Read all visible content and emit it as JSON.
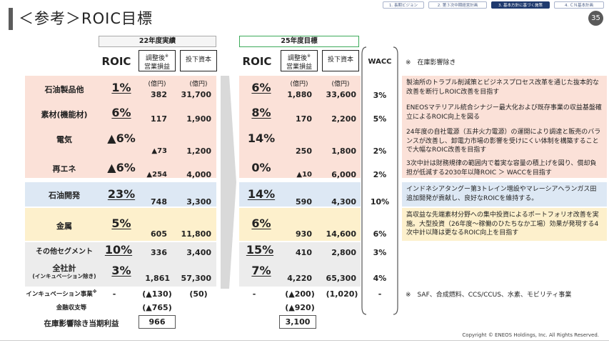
{
  "title": "＜参考＞ROIC目標",
  "page_number": "35",
  "tabs": [
    "1. 長期ビジョン",
    "2. 第３次中期経営計画",
    "3. 基本方針に基づく施策",
    "4. ＣＮ基本計画"
  ],
  "headers": {
    "actual": "22年度実績",
    "target": "25年度目標"
  },
  "col": {
    "roic": "ROIC",
    "adjusted_line1": "調整後",
    "adjusted_line2": "営業損益",
    "asterisk": "※",
    "capital": "投下資本",
    "wacc": "WACC",
    "note_top": "※　在庫影響除き",
    "unit": "(億円)"
  },
  "rows": [
    {
      "label": "石油製品他",
      "roic22": "1%",
      "op22": "382",
      "cap22": "31,700",
      "roic25": "6%",
      "op25": "1,880",
      "cap25": "33,600",
      "wacc": "3%",
      "comment": "製油所のトラブル削減策とビジネスプロセス改革を通じた抜本的な改善を断行しROIC改善を目指す"
    },
    {
      "label": "素材(機能材)",
      "roic22": "6%",
      "op22": "117",
      "cap22": "1,900",
      "roic25": "8%",
      "op25": "170",
      "cap25": "2,200",
      "wacc": "5%",
      "comment": "ENEOSマテリアル統合シナジー最大化および既存事業の収益基盤確立によるROIC向上を図る"
    },
    {
      "label": "電気",
      "roic22": "▲6%",
      "op22": "▲73",
      "cap22": "1,200",
      "roic25": "14%",
      "op25": "250",
      "cap25": "1,800",
      "wacc": "2%",
      "comment": "24年度の自社電源（五井火力電源）の運開により調達と販売のバランスが改善し、卸電力市場の影響を受けにくい体制を構築することで大幅なROIC改善を目指す"
    },
    {
      "label": "再エネ",
      "roic22": "▲6%",
      "op22": "▲254",
      "cap22": "4,000",
      "roic25": "0%",
      "op25": "▲10",
      "cap25": "6,000",
      "wacc": "2%",
      "comment": "3次中計は財務規律の範囲内で着実な容量の積上げを図り、償却負担が低減する2030年以降ROIC ＞ WACCを目指す"
    },
    {
      "label": "石油開発",
      "roic22": "23%",
      "op22": "748",
      "cap22": "3,300",
      "roic25": "14%",
      "op25": "590",
      "cap25": "4,300",
      "wacc": "10%",
      "comment": "インドネシアタングー第3トレイン増設やマレーシアヘランガス田追加開発が貢献し、良好なROICを維持する。"
    },
    {
      "label": "金属",
      "roic22": "5%",
      "op22": "605",
      "cap22": "11,800",
      "roic25": "6%",
      "op25": "930",
      "cap25": "14,600",
      "wacc": "6%",
      "comment": "高収益な先端素材分野への集中投資によるポートフォリオ改善を実施。大型投資（26年度～稼働のひたちなか工場）効果が発現する4次中計以降は更なるROIC向上を目指す"
    },
    {
      "label": "その他セグメント",
      "roic22": "10%",
      "op22": "336",
      "cap22": "3,400",
      "roic25": "15%",
      "op25": "410",
      "cap25": "2,800",
      "wacc": "3%",
      "comment": ""
    },
    {
      "label": "全社計",
      "sublabel": "(インキュベーション除き)",
      "roic22": "3%",
      "op22": "1,861",
      "cap22": "57,300",
      "roic25": "7%",
      "op25": "4,220",
      "cap25": "65,300",
      "wacc": "4%",
      "comment": ""
    }
  ],
  "incubation": {
    "label": "インキュベーション事業",
    "asterisk": "※",
    "roic22": "-",
    "op22": "(▲130)",
    "cap22": "(50)",
    "roic25": "-",
    "op25": "(▲200)",
    "cap25": "(1,020)",
    "wacc": "-"
  },
  "finance": {
    "label": "金融収支等",
    "v22": "(▲765)",
    "v25": "(▲920)"
  },
  "net_income": {
    "label": "在庫影響除き当期利益",
    "v22": "966",
    "v25": "3,100"
  },
  "note_bottom": "※　SAF、合成燃料、CCS/CCUS、水素、モビリティ事業",
  "copyright": "Copyright © ENEOS Holdings, Inc. All Rights Reserved.",
  "colors": {
    "red_band": "#fbe1d8",
    "blue_band": "#dde8f4",
    "yellow_band": "#fdf0cc",
    "gray_band": "#ececec",
    "accent": "#1f3a6e"
  }
}
